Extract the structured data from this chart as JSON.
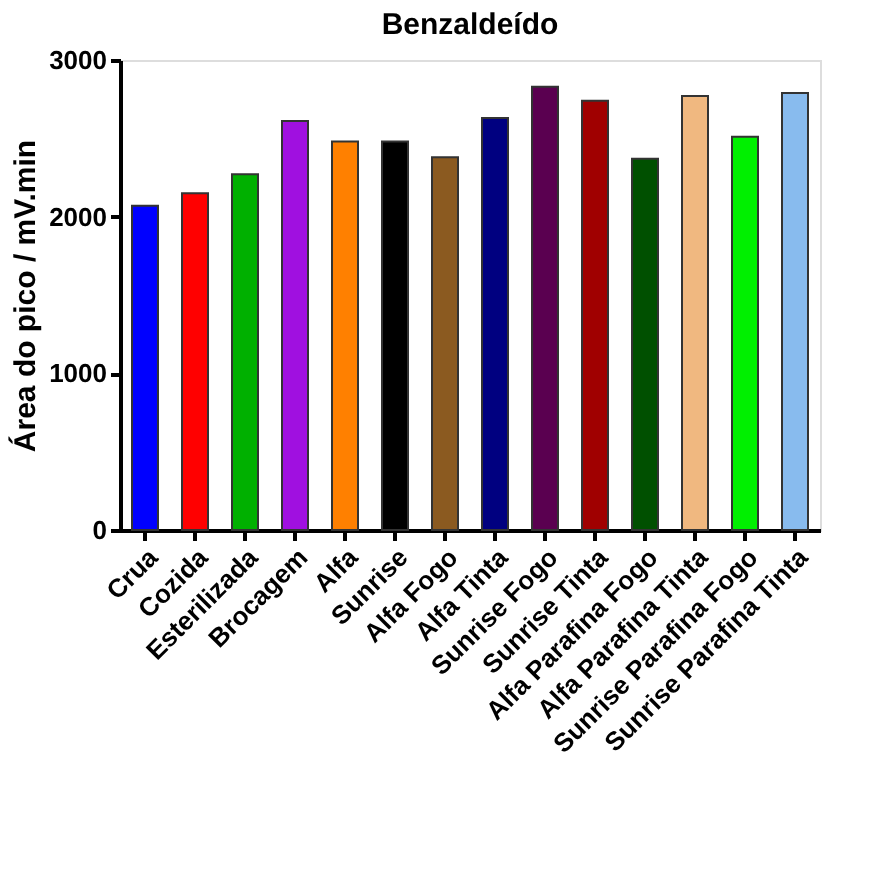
{
  "chart_data": {
    "type": "bar",
    "title": "Benzaldeído",
    "ylabel": "Área do pico / mV.min",
    "categories": [
      "Crua",
      "Cozida",
      "Esterilizada",
      "Brocagem",
      "Alfa",
      "Sunrise",
      "Alfa Fogo",
      "Alfa Tinta",
      "Sunrise Fogo",
      "Sunrise Tinta",
      "Alfa Parafina Fogo",
      "Alfa Parafina Tinta",
      "Sunrise Parafina Fogo",
      "Sunrise Parafina Tinta"
    ],
    "values": [
      2070,
      2150,
      2270,
      2610,
      2480,
      2480,
      2380,
      2630,
      2830,
      2740,
      2370,
      2770,
      2510,
      2790
    ],
    "colors": [
      "#0000ff",
      "#ff0000",
      "#00b000",
      "#a010e0",
      "#ff8000",
      "#000000",
      "#8b5a20",
      "#000080",
      "#5a0050",
      "#a00000",
      "#005000",
      "#f0b880",
      "#00f000",
      "#88bbee"
    ],
    "ylim": [
      0,
      3000
    ],
    "yticks": [
      0,
      1000,
      2000,
      3000
    ],
    "grid": false
  }
}
